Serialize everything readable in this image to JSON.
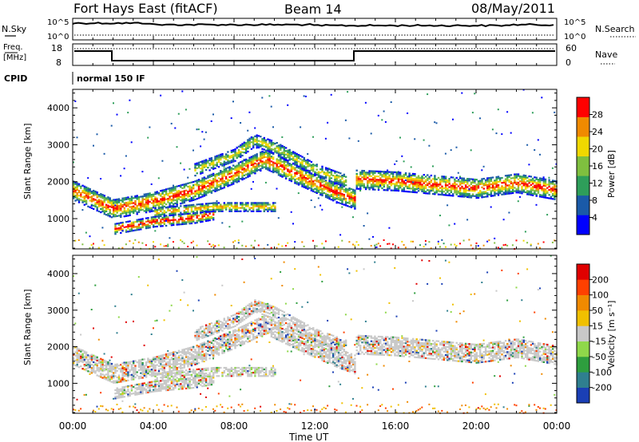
{
  "header": {
    "title": "Fort Hays East (fitACF)",
    "beam": "Beam 14",
    "date": "08/May/2011"
  },
  "top_panels": {
    "nsky_label": "N.Sky",
    "nsky_ticks": [
      "10^5",
      "10^0"
    ],
    "nsearch_label": "N.Search",
    "freq_label_1": "Freq.",
    "freq_label_2": "[MHz]",
    "freq_ticks": [
      "18",
      "8"
    ],
    "nave_ticks": [
      "60",
      "0"
    ],
    "nave_label": "Nave",
    "cpid_label": "CPID",
    "cpid_value": "normal 150 IF"
  },
  "chart_data": [
    {
      "type": "heatmap",
      "name": "power",
      "ylabel": "Slant Range [km]",
      "ylim": [
        180,
        4500
      ],
      "yticks": [
        1000,
        2000,
        3000,
        4000
      ],
      "xlim": [
        0,
        24
      ],
      "colorbar_label": "Power [dB]",
      "colorbar_ticks": [
        "28",
        "24",
        "20",
        "16",
        "12",
        "8",
        "4"
      ],
      "colors": [
        "#0000ff",
        "#1a5aa8",
        "#2e9e5a",
        "#7fbf3f",
        "#f0d800",
        "#f08a00",
        "#ff0000"
      ]
    },
    {
      "type": "heatmap",
      "name": "velocity",
      "ylabel": "Slant Range [km]",
      "ylim": [
        180,
        4500
      ],
      "yticks": [
        1000,
        2000,
        3000,
        4000
      ],
      "xlim": [
        0,
        24
      ],
      "colorbar_label": "Velocity [m s⁻¹]",
      "colorbar_ticks": [
        "200",
        "100",
        "50",
        "15",
        "-15",
        "-50",
        "-100",
        "-200"
      ],
      "colors": [
        "#1a3fb5",
        "#2f7f8f",
        "#2e9e3e",
        "#8fd84a",
        "#c8c8c8",
        "#f0c000",
        "#f08a00",
        "#ff4000",
        "#e00000"
      ]
    }
  ],
  "x_axis": {
    "ticks": [
      "00:00",
      "04:00",
      "08:00",
      "12:00",
      "16:00",
      "20:00",
      "00:00"
    ],
    "label": "Time UT"
  },
  "echo_bands": {
    "main_arc": [
      [
        0,
        1750
      ],
      [
        2,
        1250
      ],
      [
        4,
        1450
      ],
      [
        6,
        1750
      ],
      [
        8,
        2200
      ],
      [
        9.5,
        2600
      ],
      [
        11,
        2200
      ],
      [
        13,
        1700
      ],
      [
        14,
        1500
      ],
      [
        14,
        2050
      ],
      [
        16,
        2000
      ],
      [
        18,
        1900
      ],
      [
        20,
        1800
      ],
      [
        22,
        1950
      ],
      [
        24,
        1750
      ]
    ],
    "lower_band": [
      [
        2,
        700
      ],
      [
        4,
        900
      ],
      [
        6,
        1000
      ],
      [
        7,
        1100
      ]
    ],
    "mid_band": [
      [
        4,
        1150
      ],
      [
        7,
        1300
      ],
      [
        10,
        1300
      ]
    ],
    "upper_arc": [
      [
        6,
        2300
      ],
      [
        8,
        2700
      ],
      [
        9,
        3100
      ],
      [
        10,
        2900
      ],
      [
        12,
        2300
      ],
      [
        13.5,
        2000
      ]
    ]
  }
}
